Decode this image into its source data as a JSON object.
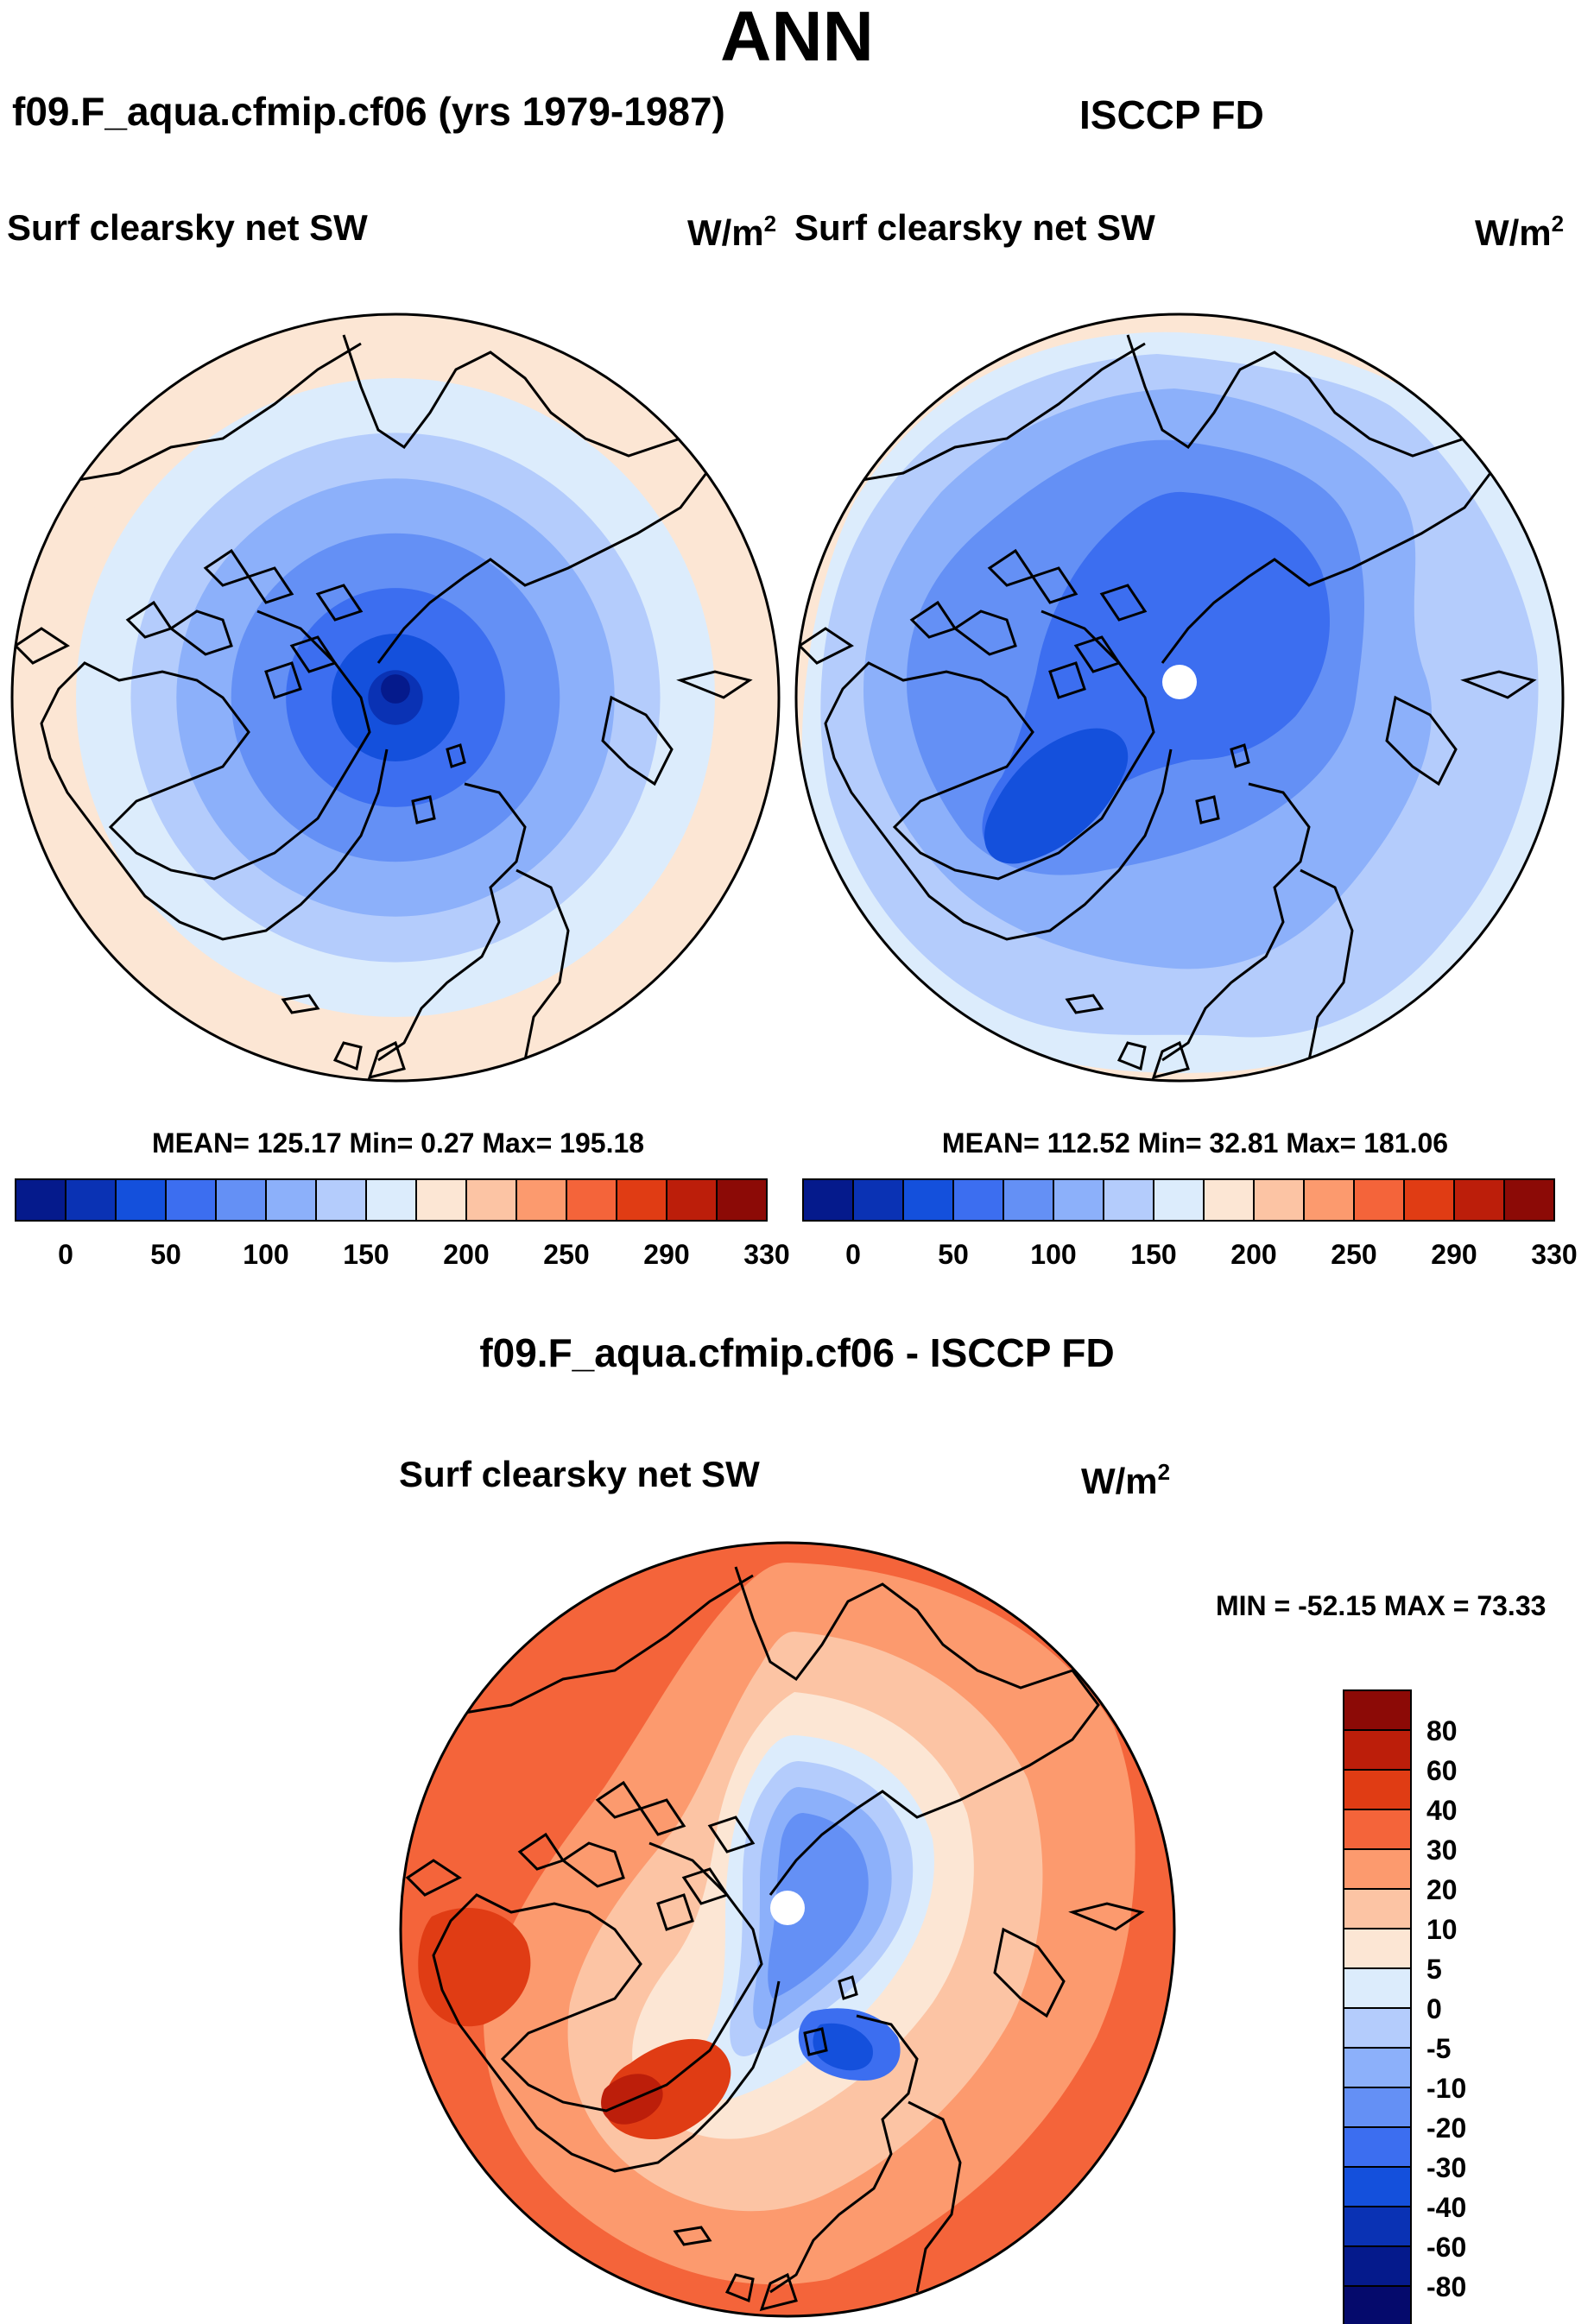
{
  "header": {
    "season": "ANN",
    "model_title": "f09.F_aqua.cfmip.cf06 (yrs 1979-1987)",
    "obs_title": "ISCCP FD",
    "diff_title": "f09.F_aqua.cfmip.cf06 - ISCCP FD"
  },
  "panels": {
    "model": {
      "variable": "Surf clearsky net SW",
      "units": "W/m",
      "units_exp": "2",
      "stats": "MEAN= 125.17  Min=   0.27  Max= 195.18"
    },
    "obs": {
      "variable": "Surf clearsky net SW",
      "units": "W/m",
      "units_exp": "2",
      "stats": "MEAN= 112.52  Min=  32.81  Max= 181.06"
    },
    "diff": {
      "variable": "Surf clearsky net SW",
      "units": "W/m",
      "units_exp": "2",
      "stats": "MIN = -52.15 MAX =  73.33"
    }
  },
  "chart_data": [
    {
      "type": "heatmap",
      "panel": "model",
      "projection": "north polar stereographic",
      "title": "Surf clearsky net SW",
      "units": "W/m^2",
      "mean": 125.17,
      "min": 0.27,
      "max": 195.18,
      "colorbar": {
        "labels": [
          "0",
          "50",
          "100",
          "150",
          "200",
          "250",
          "290",
          "330"
        ],
        "colors": [
          "#051a8c",
          "#0a32b4",
          "#1450dc",
          "#3c6ef0",
          "#6490f5",
          "#8cb0fa",
          "#b4ccfc",
          "#dcecfc",
          "#fce6d4",
          "#fcc4a4",
          "#fc9a6e",
          "#f4643a",
          "#e03c14",
          "#bc1e0a",
          "#8c0a06"
        ]
      },
      "rings": [
        {
          "level": 15,
          "color": "#0a32b4"
        },
        {
          "level": 35,
          "color": "#1450dc"
        },
        {
          "level": 60,
          "color": "#3c6ef0"
        },
        {
          "level": 90,
          "color": "#6490f5"
        },
        {
          "level": 120,
          "color": "#8cb0fa"
        },
        {
          "level": 145,
          "color": "#b4ccfc"
        },
        {
          "level": 175,
          "color": "#dcecfc"
        },
        {
          "level": 195,
          "color": "#fce6d4"
        }
      ]
    },
    {
      "type": "heatmap",
      "panel": "obs",
      "projection": "north polar stereographic",
      "title": "Surf clearsky net SW",
      "units": "W/m^2",
      "mean": 112.52,
      "min": 32.81,
      "max": 181.06,
      "colorbar": {
        "labels": [
          "0",
          "50",
          "100",
          "150",
          "200",
          "250",
          "290",
          "330"
        ],
        "colors": [
          "#051a8c",
          "#0a32b4",
          "#1450dc",
          "#3c6ef0",
          "#6490f5",
          "#8cb0fa",
          "#b4ccfc",
          "#dcecfc",
          "#fce6d4",
          "#fcc4a4",
          "#fc9a6e",
          "#f4643a",
          "#e03c14",
          "#bc1e0a",
          "#8c0a06"
        ]
      }
    },
    {
      "type": "heatmap",
      "panel": "diff",
      "projection": "north polar stereographic",
      "title": "Surf clearsky net SW",
      "units": "W/m^2",
      "min": -52.15,
      "max": 73.33,
      "colorbar": {
        "labels": [
          "80",
          "60",
          "40",
          "30",
          "20",
          "10",
          "5",
          "0",
          "-5",
          "-10",
          "-20",
          "-30",
          "-40",
          "-60",
          "-80"
        ],
        "colors": [
          "#8c0a06",
          "#bc1e0a",
          "#e03c14",
          "#f4643a",
          "#fc9a6e",
          "#fcc4a4",
          "#fce6d4",
          "#dcecfc",
          "#b4ccfc",
          "#8cb0fa",
          "#6490f5",
          "#3c6ef0",
          "#1450dc",
          "#0a32b4",
          "#051a8c",
          "#050a6c"
        ]
      }
    }
  ]
}
